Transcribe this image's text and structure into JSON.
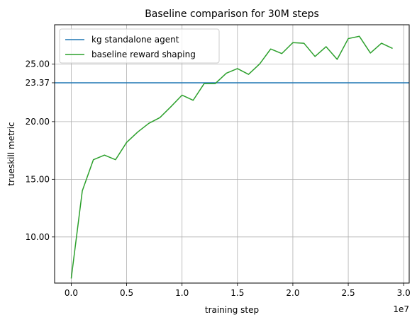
{
  "chart_data": {
    "type": "line",
    "title": "Baseline comparison for 30M steps",
    "xlabel": "training step",
    "ylabel": "trueskill metric",
    "x_offset_label": "1e7",
    "xlim": [
      -1500000,
      30500000
    ],
    "ylim": [
      6.0,
      28.4
    ],
    "x_ticks": [
      {
        "value": 0,
        "label": "0.0"
      },
      {
        "value": 5000000,
        "label": "0.5"
      },
      {
        "value": 10000000,
        "label": "1.0"
      },
      {
        "value": 15000000,
        "label": "1.5"
      },
      {
        "value": 20000000,
        "label": "2.0"
      },
      {
        "value": 25000000,
        "label": "2.5"
      },
      {
        "value": 30000000,
        "label": "3.0"
      }
    ],
    "y_ticks": [
      {
        "value": 10.0,
        "label": "10.00"
      },
      {
        "value": 15.0,
        "label": "15.00"
      },
      {
        "value": 20.0,
        "label": "20.00"
      },
      {
        "value": 23.37,
        "label": "23.37"
      },
      {
        "value": 25.0,
        "label": "25.00"
      }
    ],
    "grid": true,
    "legend_position": "top-left",
    "series": [
      {
        "name": "kg standalone agent",
        "color": "#1f77b4",
        "kind": "hline",
        "y": 23.37
      },
      {
        "name": "baseline reward shaping",
        "color": "#2ca02c",
        "kind": "line",
        "x": [
          0,
          1000000,
          2000000,
          3000000,
          4000000,
          5000000,
          6000000,
          7000000,
          8000000,
          9000000,
          10000000,
          11000000,
          12000000,
          13000000,
          14000000,
          15000000,
          16000000,
          17000000,
          18000000,
          19000000,
          20000000,
          21000000,
          22000000,
          23000000,
          24000000,
          25000000,
          26000000,
          27000000,
          28000000,
          29000000
        ],
        "y": [
          6.4,
          14.0,
          16.7,
          17.1,
          16.7,
          18.2,
          19.1,
          19.85,
          20.35,
          21.3,
          22.3,
          21.85,
          23.3,
          23.3,
          24.2,
          24.6,
          24.1,
          25.0,
          26.3,
          25.9,
          26.85,
          26.8,
          25.65,
          26.5,
          25.4,
          27.2,
          27.4,
          25.95,
          26.8,
          26.35
        ]
      }
    ]
  }
}
